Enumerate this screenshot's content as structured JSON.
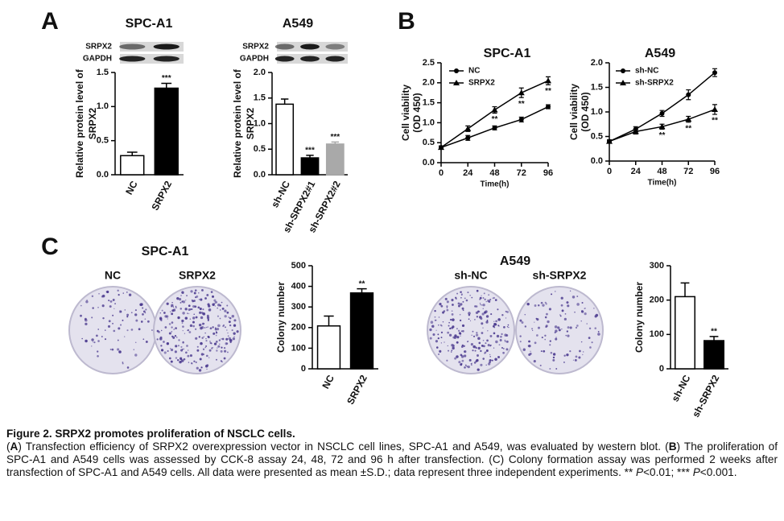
{
  "panel_labels": [
    "A",
    "B",
    "C"
  ],
  "chart_data": [
    {
      "type": "bar",
      "title": "SPC-A1",
      "blot_labels": [
        "SRPX2",
        "GAPDH"
      ],
      "ylabel": [
        "Relative protein level of",
        "SRPX2"
      ],
      "categories": [
        "NC",
        "SRPX2"
      ],
      "values": [
        0.28,
        1.27
      ],
      "errors": [
        0.05,
        0.07
      ],
      "colors": [
        "#ffffff",
        "#000000"
      ],
      "significance": [
        null,
        "***"
      ],
      "ylim": [
        0,
        1.5
      ],
      "yticks": [
        {
          "value": 0,
          "label": "0.0"
        },
        0.5,
        {
          "value": 1,
          "label": "1.0"
        },
        1.5
      ]
    },
    {
      "type": "bar",
      "title": "A549",
      "blot_labels": [
        "SRPX2",
        "GAPDH"
      ],
      "ylabel": [
        "Relative protein level of",
        "SRPX2"
      ],
      "categories": [
        "sh-NC",
        "sh-SRPX2#1",
        "sh-SRPX2#2"
      ],
      "values": [
        1.38,
        0.33,
        0.6
      ],
      "errors": [
        0.1,
        0.05,
        0.04
      ],
      "colors": [
        "#ffffff",
        "#000000",
        "#a9a9a9"
      ],
      "significance": [
        null,
        "***",
        "***"
      ],
      "ylim": [
        0,
        2
      ],
      "yticks": [
        {
          "value": 0,
          "label": "0.0"
        },
        0.5,
        {
          "value": 1,
          "label": "1.0"
        },
        1.5,
        {
          "value": 2,
          "label": "2.0"
        }
      ]
    },
    {
      "type": "line",
      "title": "SPC-A1",
      "ylabel": [
        "Cell viability",
        "(OD 450)"
      ],
      "xlabel": "Time(h)",
      "x": [
        0,
        24,
        48,
        72,
        96
      ],
      "xlim": [
        0,
        96
      ],
      "xticks": [
        0,
        24,
        48,
        72,
        96
      ],
      "ylim": [
        0,
        2.5
      ],
      "yticks": [
        {
          "value": 0,
          "label": "0.0"
        },
        0.5,
        {
          "value": 1,
          "label": "1.0"
        },
        1.5,
        {
          "value": 2,
          "label": "2.0"
        },
        2.5
      ],
      "series": [
        {
          "name": "NC",
          "marker": "circle",
          "color": "#000000",
          "values": [
            0.38,
            0.62,
            0.87,
            1.08,
            1.4
          ],
          "errors": [
            0.04,
            0.06,
            0.05,
            0.06,
            0.05
          ]
        },
        {
          "name": "SRPX2",
          "marker": "triangle",
          "color": "#000000",
          "values": [
            0.38,
            0.85,
            1.32,
            1.75,
            2.05
          ],
          "errors": [
            0.04,
            0.07,
            0.08,
            0.12,
            0.1
          ],
          "significance": [
            null,
            null,
            "**",
            "**",
            "**"
          ]
        }
      ]
    },
    {
      "type": "line",
      "title": "A549",
      "ylabel": [
        "Cell viability",
        "(OD 450)"
      ],
      "xlabel": "Time(h)",
      "x": [
        0,
        24,
        48,
        72,
        96
      ],
      "xlim": [
        0,
        96
      ],
      "xticks": [
        0,
        24,
        48,
        72,
        96
      ],
      "ylim": [
        0,
        2
      ],
      "yticks": [
        {
          "value": 0,
          "label": "0.0"
        },
        0.5,
        {
          "value": 1,
          "label": "1.0"
        },
        1.5,
        {
          "value": 2,
          "label": "2.0"
        }
      ],
      "series": [
        {
          "name": "sh-NC",
          "marker": "circle",
          "color": "#000000",
          "values": [
            0.4,
            0.65,
            0.97,
            1.35,
            1.8
          ],
          "errors": [
            0.03,
            0.05,
            0.06,
            0.1,
            0.08
          ]
        },
        {
          "name": "sh-SRPX2",
          "marker": "triangle",
          "color": "#000000",
          "values": [
            0.4,
            0.6,
            0.7,
            0.85,
            1.05
          ],
          "errors": [
            0.03,
            0.05,
            0.05,
            0.06,
            0.1
          ],
          "significance": [
            null,
            null,
            "**",
            "**",
            "**"
          ]
        }
      ]
    },
    {
      "type": "bar",
      "title": "SPC-A1",
      "dish_labels": [
        "NC",
        "SRPX2"
      ],
      "ylabel": [
        "Colony number"
      ],
      "categories": [
        "NC",
        "SRPX2"
      ],
      "values": [
        208,
        368
      ],
      "errors": [
        48,
        20
      ],
      "colors": [
        "#ffffff",
        "#000000"
      ],
      "significance": [
        null,
        "**"
      ],
      "ylim": [
        0,
        500
      ],
      "yticks": [
        0,
        100,
        200,
        300,
        400,
        500
      ]
    },
    {
      "type": "bar",
      "title": "A549",
      "dish_labels": [
        "sh-NC",
        "sh-SRPX2"
      ],
      "ylabel": [
        "Colony number"
      ],
      "categories": [
        "sh-NC",
        "sh-SRPX2"
      ],
      "values": [
        210,
        82
      ],
      "errors": [
        40,
        12
      ],
      "colors": [
        "#ffffff",
        "#000000"
      ],
      "significance": [
        null,
        "**"
      ],
      "ylim": [
        0,
        300
      ],
      "yticks": [
        0,
        100,
        200,
        300
      ]
    }
  ],
  "caption": {
    "title": "Figure 2. SRPX2 promotes proliferation of NSCLC cells.",
    "body": [
      "(",
      "A",
      ") Transfection efficiency of SRPX2 overexpression vector in NSCLC cell lines, SPC-A1 and A549, was evaluated by western blot. (",
      "B",
      ") The proliferation of SPC-A1 and A549 cells was assessed by CCK-8 assay 24, 48, 72 and 96 h after transfection. (C) Colony formation assay was performed 2 weeks after transfection of SPC-A1 and A549 cells. All data were presented as mean ±S.D.; data represent three independent experiments. ** ",
      "P",
      "<0.01; *** ",
      "P",
      "<0.001."
    ]
  }
}
